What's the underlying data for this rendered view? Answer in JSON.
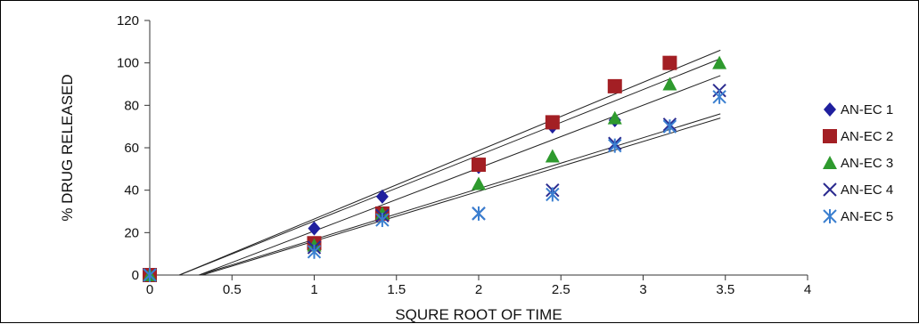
{
  "chart_data": {
    "type": "scatter",
    "title": "",
    "xlabel": "SQURE ROOT OF TIME",
    "ylabel": "% DRUG RELEASED",
    "xlim": [
      0,
      4
    ],
    "ylim": [
      0,
      120
    ],
    "x_ticks": [
      "0",
      "0.5",
      "1",
      "1.5",
      "2",
      "2.5",
      "3",
      "3.5",
      "4"
    ],
    "y_ticks": [
      "0",
      "20",
      "40",
      "60",
      "80",
      "100",
      "120"
    ],
    "grid": false,
    "legend_position": "right",
    "series": [
      {
        "name": "AN-EC 1",
        "marker": "diamond",
        "color": "#1f1f9e",
        "x": [
          0,
          1,
          1.414,
          2,
          2.449,
          2.828,
          3.162
        ],
        "y": [
          0,
          22,
          37,
          51,
          70,
          73,
          100
        ],
        "trend_line": [
          [
            0.18,
            0
          ],
          [
            3.47,
            106
          ]
        ]
      },
      {
        "name": "AN-EC 2",
        "marker": "square",
        "color": "#a31f24",
        "x": [
          0,
          1,
          1.414,
          2,
          2.449,
          2.828,
          3.162
        ],
        "y": [
          0,
          15,
          29,
          52,
          72,
          89,
          100
        ],
        "trend_line": [
          [
            0.18,
            0
          ],
          [
            3.47,
            102
          ]
        ]
      },
      {
        "name": "AN-EC 3",
        "marker": "triangle",
        "color": "#2e9a2e",
        "x": [
          0,
          1,
          1.414,
          2,
          2.449,
          2.828,
          3.162,
          3.464
        ],
        "y": [
          0,
          14,
          29,
          43,
          56,
          74,
          90,
          100
        ],
        "trend_line": [
          [
            0.3,
            0
          ],
          [
            3.47,
            94
          ]
        ]
      },
      {
        "name": "AN-EC 4",
        "marker": "x",
        "color": "#2b2b8f",
        "x": [
          0,
          1,
          1.414,
          2,
          2.449,
          2.828,
          3.162,
          3.464
        ],
        "y": [
          0,
          13,
          28,
          29,
          40,
          62,
          71,
          87
        ],
        "trend_line": [
          [
            0.3,
            0
          ],
          [
            3.47,
            76
          ]
        ]
      },
      {
        "name": "AN-EC 5",
        "marker": "asterisk",
        "color": "#3a7fd0",
        "x": [
          0,
          1,
          1.414,
          2,
          2.449,
          2.828,
          3.162,
          3.464
        ],
        "y": [
          0,
          11,
          26,
          29,
          38,
          61,
          70,
          84
        ],
        "trend_line": [
          [
            0.32,
            0
          ],
          [
            3.47,
            74
          ]
        ]
      }
    ]
  }
}
